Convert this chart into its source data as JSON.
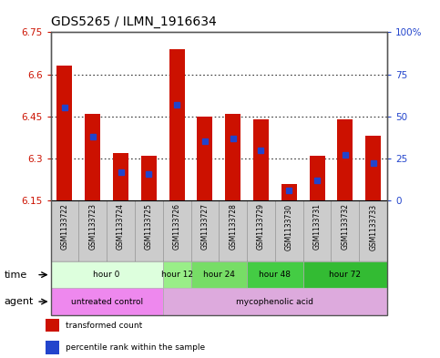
{
  "title": "GDS5265 / ILMN_1916634",
  "samples": [
    "GSM1133722",
    "GSM1133723",
    "GSM1133724",
    "GSM1133725",
    "GSM1133726",
    "GSM1133727",
    "GSM1133728",
    "GSM1133729",
    "GSM1133730",
    "GSM1133731",
    "GSM1133732",
    "GSM1133733"
  ],
  "bar_values": [
    6.63,
    6.46,
    6.32,
    6.31,
    6.69,
    6.45,
    6.46,
    6.44,
    6.21,
    6.31,
    6.44,
    6.38
  ],
  "bar_bottom": 6.15,
  "percentile_values": [
    0.55,
    0.38,
    0.17,
    0.16,
    0.57,
    0.35,
    0.37,
    0.3,
    0.06,
    0.12,
    0.27,
    0.22
  ],
  "ylim_left": [
    6.15,
    6.75
  ],
  "yticks_left": [
    6.15,
    6.3,
    6.45,
    6.6,
    6.75
  ],
  "yticks_right_vals": [
    0,
    25,
    50,
    75,
    100
  ],
  "yticks_right_labels": [
    "0",
    "25",
    "50",
    "75",
    "100%"
  ],
  "grid_lines": [
    6.3,
    6.45,
    6.6
  ],
  "bar_color": "#cc1100",
  "percentile_color": "#2244cc",
  "time_groups": [
    {
      "label": "hour 0",
      "start": 0,
      "end": 4,
      "color": "#ddffdd"
    },
    {
      "label": "hour 12",
      "start": 4,
      "end": 5,
      "color": "#99ee88"
    },
    {
      "label": "hour 24",
      "start": 5,
      "end": 7,
      "color": "#77dd66"
    },
    {
      "label": "hour 48",
      "start": 7,
      "end": 9,
      "color": "#44cc44"
    },
    {
      "label": "hour 72",
      "start": 9,
      "end": 12,
      "color": "#33bb33"
    }
  ],
  "agent_groups": [
    {
      "label": "untreated control",
      "start": 0,
      "end": 4,
      "color": "#ee88ee"
    },
    {
      "label": "mycophenolic acid",
      "start": 4,
      "end": 12,
      "color": "#ddaadd"
    }
  ],
  "legend_items": [
    {
      "label": "transformed count",
      "color": "#cc1100"
    },
    {
      "label": "percentile rank within the sample",
      "color": "#2244cc"
    }
  ],
  "title_fontsize": 10,
  "tick_fontsize": 7.5,
  "label_fontsize": 7,
  "bar_width": 0.55,
  "percentile_marker_size": 5,
  "bg_color": "#ffffff",
  "left_tick_color": "#cc1100",
  "right_tick_color": "#2244cc"
}
